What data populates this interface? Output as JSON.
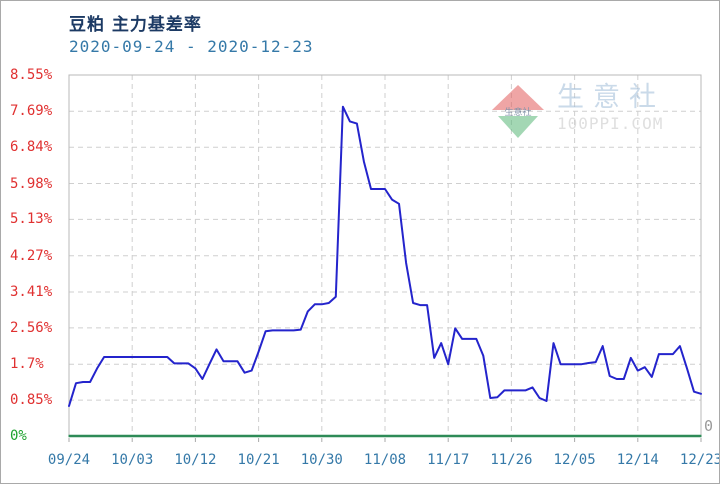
{
  "header": {
    "title": "豆粕 主力基差率",
    "date_range": "2020-09-24 - 2020-12-23"
  },
  "watermark": {
    "name": "生意社",
    "url_text": "100PPI.COM",
    "diamond_red": "#e25d5d",
    "diamond_green": "#58b878",
    "mini_text_color": "#1c3a64"
  },
  "right_axis": {
    "zero_label": "0"
  },
  "chart_data": {
    "type": "line",
    "title": "豆粕 主力基差率",
    "subtitle": "2020-09-24 - 2020-12-23",
    "series_name": "主力基差率",
    "line_color": "#2424cc",
    "grid": "dashed",
    "legend": "none",
    "ylim": [
      0,
      8.55
    ],
    "ytick_labels": [
      "8.55%",
      "7.69%",
      "6.84%",
      "5.98%",
      "5.13%",
      "4.27%",
      "3.41%",
      "2.56%",
      "1.7%",
      "0.85%",
      "0%"
    ],
    "ytick_values": [
      8.55,
      7.69,
      6.84,
      5.98,
      5.13,
      4.27,
      3.41,
      2.56,
      1.7,
      0.85,
      0
    ],
    "xtick_labels": [
      "09/24",
      "10/03",
      "10/12",
      "10/21",
      "10/30",
      "11/08",
      "11/17",
      "11/26",
      "12/05",
      "12/14",
      "12/23"
    ],
    "xtick_days": [
      0,
      9,
      18,
      27,
      36,
      45,
      54,
      63,
      72,
      81,
      90
    ],
    "x_total_days": 90,
    "x_start_date": "2020-09-24",
    "x_end_date": "2020-12-23",
    "values_percent_by_day": [
      0.71,
      1.25,
      1.28,
      1.28,
      1.6,
      1.87,
      1.87,
      1.87,
      1.87,
      1.87,
      1.87,
      1.87,
      1.87,
      1.87,
      1.87,
      1.72,
      1.72,
      1.72,
      1.6,
      1.35,
      1.7,
      2.05,
      1.77,
      1.77,
      1.77,
      1.5,
      1.55,
      2.0,
      2.48,
      2.5,
      2.5,
      2.5,
      2.5,
      2.52,
      2.95,
      3.12,
      3.12,
      3.15,
      3.3,
      7.8,
      7.45,
      7.4,
      6.5,
      5.85,
      5.85,
      5.85,
      5.6,
      5.5,
      4.1,
      3.15,
      3.1,
      3.1,
      1.85,
      2.2,
      1.7,
      2.55,
      2.3,
      2.3,
      2.3,
      1.9,
      0.9,
      0.92,
      1.08,
      1.08,
      1.08,
      1.08,
      1.15,
      0.9,
      0.83,
      2.2,
      1.7,
      1.7,
      1.7,
      1.7,
      1.73,
      1.75,
      2.13,
      1.42,
      1.35,
      1.35,
      1.85,
      1.55,
      1.63,
      1.4,
      1.94,
      1.94,
      1.94,
      2.13,
      1.6,
      1.05,
      1.0
    ],
    "zero_line_color": "#2e8b57",
    "border_color": "#b8b8b8",
    "gridline_color": "#cfcfcf",
    "ylabel_color": "#e03131",
    "ylabel_zero_color": "#1fa32f",
    "xlabel_color": "#3579a8"
  }
}
